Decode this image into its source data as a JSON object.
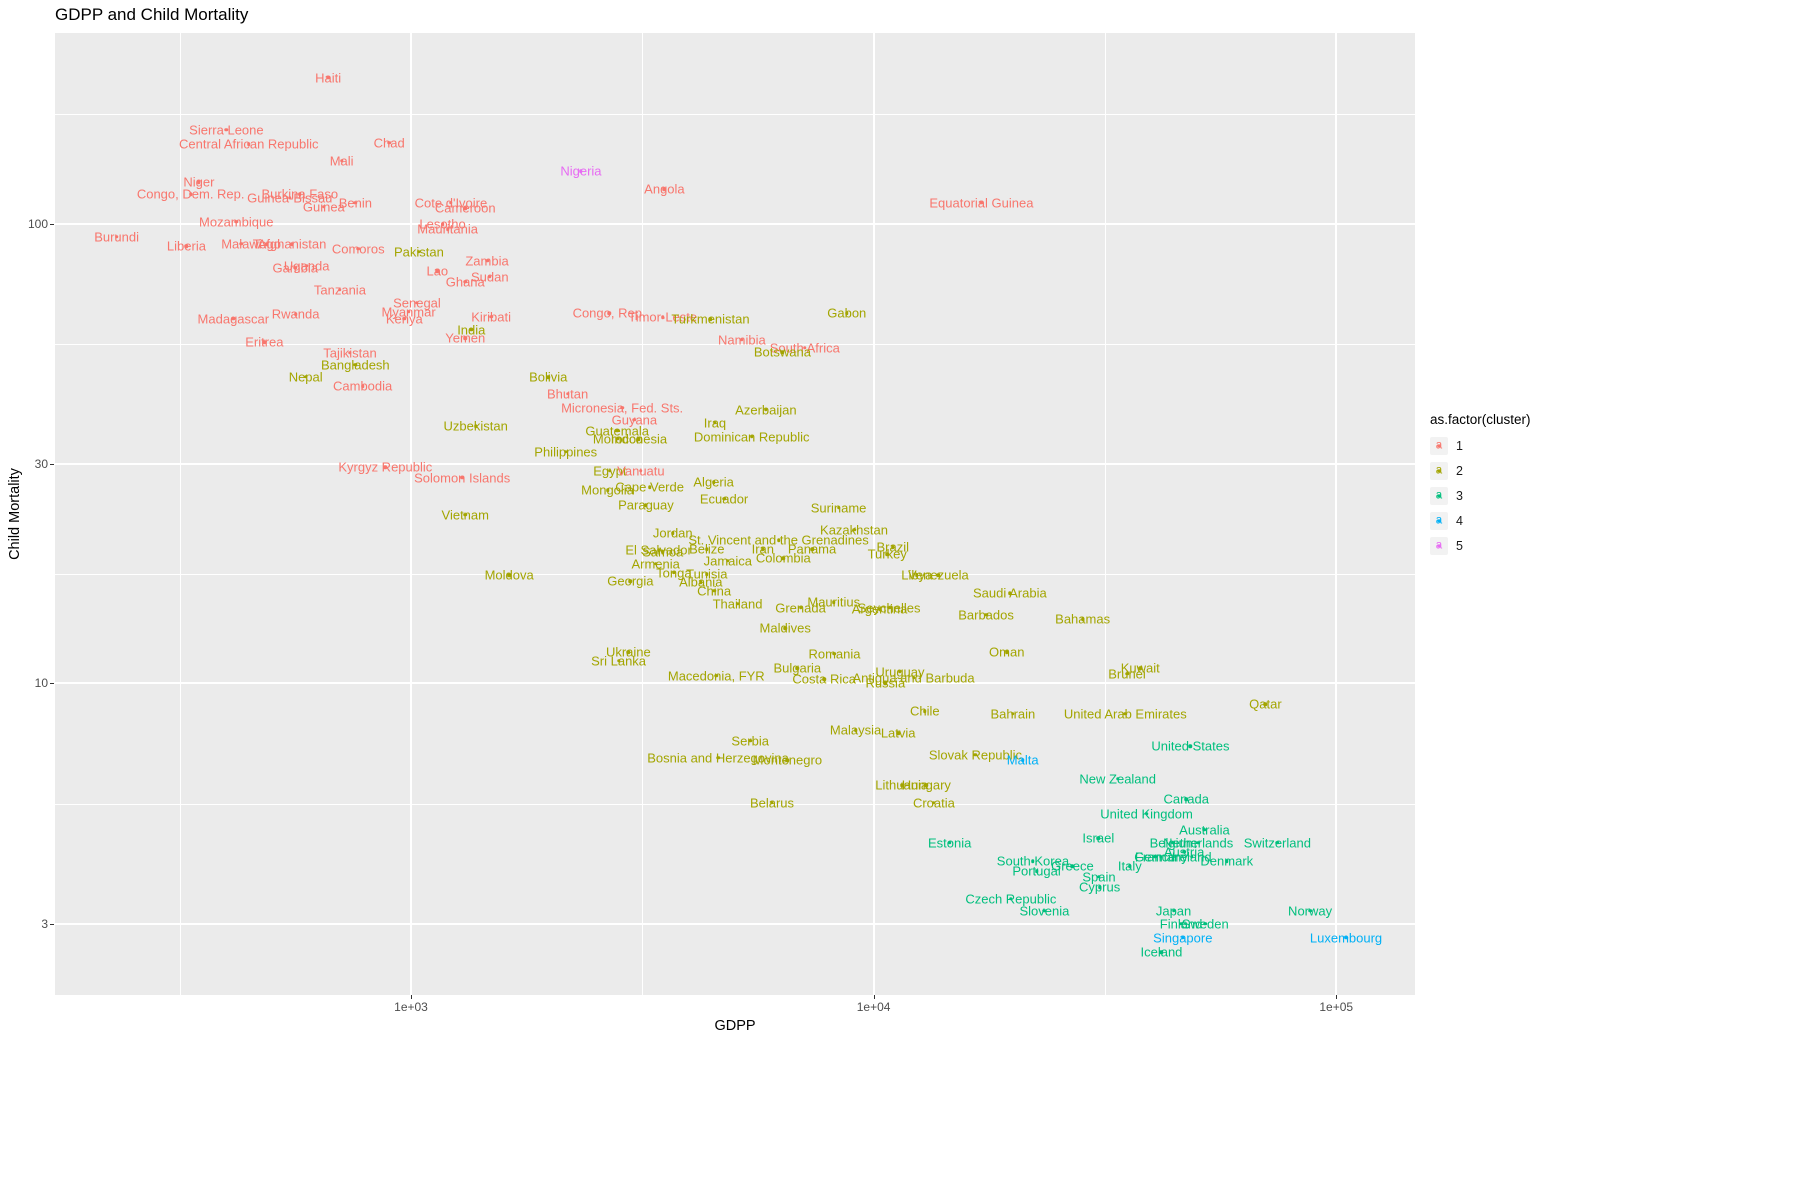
{
  "chart": {
    "title": "GDPP and Child Mortality",
    "panel_bg": "#EBEBEB",
    "grid_color": "#FFFFFF",
    "tick_text_color": "#4D4D4D",
    "x_axis": {
      "label": "GDPP",
      "scale": "log10",
      "domain": [
        170,
        148000
      ],
      "ticks": [
        {
          "label": "1e+03",
          "value": 1000
        },
        {
          "label": "1e+04",
          "value": 10000
        },
        {
          "label": "1e+05",
          "value": 100000
        }
      ],
      "minor": [
        316.2,
        3162,
        31620
      ]
    },
    "y_axis": {
      "label": "Child Mortality",
      "scale": "log10",
      "domain": [
        2.1,
        260
      ],
      "ticks": [
        {
          "label": "100",
          "value": 100
        },
        {
          "label": "30",
          "value": 30
        },
        {
          "label": "10",
          "value": 10
        },
        {
          "label": "3",
          "value": 3
        }
      ],
      "minor": [
        5.48,
        17.32,
        54.77,
        173.2
      ]
    },
    "legend": {
      "title": "as.factor(cluster)",
      "items": [
        {
          "label": "1",
          "color": "#F8766D"
        },
        {
          "label": "2",
          "color": "#A3A500"
        },
        {
          "label": "3",
          "color": "#00BF7D"
        },
        {
          "label": "4",
          "color": "#00B0F6"
        },
        {
          "label": "5",
          "color": "#E76BF3"
        }
      ]
    }
  },
  "chart_data": {
    "type": "scatter",
    "title": "GDPP and Child Mortality",
    "xlabel": "GDPP",
    "ylabel": "Child Mortality",
    "scales": "log-log",
    "clusters": {
      "1": "#F8766D",
      "2": "#A3A500",
      "3": "#00BF7D",
      "4": "#00B0F6",
      "5": "#E76BF3"
    },
    "point_fields": [
      "name",
      "cluster",
      "gdpp",
      "child_mort"
    ],
    "points": [
      [
        "Haiti",
        1,
        662,
        208
      ],
      [
        "Sierra Leone",
        1,
        399,
        160
      ],
      [
        "Central African Republic",
        1,
        446,
        149
      ],
      [
        "Chad",
        1,
        897,
        150
      ],
      [
        "Mali",
        1,
        708,
        137
      ],
      [
        "Nigeria",
        5,
        2330,
        130
      ],
      [
        "Niger",
        1,
        348,
        123
      ],
      [
        "Angola",
        1,
        3530,
        119
      ],
      [
        "Congo, Dem. Rep.",
        1,
        334,
        116
      ],
      [
        "Burkina Faso",
        1,
        575,
        116
      ],
      [
        "Guinea-Bissau",
        1,
        547,
        114
      ],
      [
        "Benin",
        1,
        758,
        111
      ],
      [
        "Cote d'Ivoire",
        1,
        1220,
        111
      ],
      [
        "Equatorial Guinea",
        1,
        17100,
        111
      ],
      [
        "Guinea",
        1,
        648,
        109
      ],
      [
        "Cameroon",
        1,
        1310,
        108
      ],
      [
        "Mozambique",
        1,
        419,
        101
      ],
      [
        "Lesotho",
        1,
        1170,
        99.7
      ],
      [
        "Mauritania",
        1,
        1200,
        97.4
      ],
      [
        "Burundi",
        1,
        231,
        93.6
      ],
      [
        "Malawi",
        1,
        430,
        90.5
      ],
      [
        "Togo",
        1,
        488,
        90.3
      ],
      [
        "Afghanistan",
        1,
        553,
        90.2
      ],
      [
        "Liberia",
        1,
        327,
        89.3
      ],
      [
        "Comoros",
        1,
        769,
        88.2
      ],
      [
        "Pakistan",
        2,
        1040,
        87
      ],
      [
        "Zambia",
        1,
        1460,
        83.1
      ],
      [
        "Uganda",
        1,
        595,
        81
      ],
      [
        "Gambia",
        1,
        562,
        80.3
      ],
      [
        "Lao",
        1,
        1140,
        78.9
      ],
      [
        "Sudan",
        1,
        1480,
        76.7
      ],
      [
        "Ghana",
        1,
        1310,
        74.7
      ],
      [
        "Tanzania",
        1,
        702,
        71.9
      ],
      [
        "Senegal",
        1,
        1030,
        67.3
      ],
      [
        "Myanmar",
        1,
        988,
        64.4
      ],
      [
        "Gabon",
        2,
        8750,
        63.9
      ],
      [
        "Congo, Rep.",
        1,
        2680,
        63.9
      ],
      [
        "Rwanda",
        1,
        563,
        63.6
      ],
      [
        "Kiribati",
        1,
        1490,
        62.7
      ],
      [
        "Timor-Leste",
        1,
        3500,
        62.6
      ],
      [
        "Kenya",
        1,
        967,
        62.2
      ],
      [
        "Madagascar",
        1,
        413,
        62.2
      ],
      [
        "Turkmenistan",
        2,
        4440,
        62
      ],
      [
        "India",
        2,
        1350,
        58.8
      ],
      [
        "Yemen",
        1,
        1310,
        56.3
      ],
      [
        "Namibia",
        1,
        5190,
        56
      ],
      [
        "Eritrea",
        1,
        482,
        55.2
      ],
      [
        "South Africa",
        1,
        7100,
        53.7
      ],
      [
        "Botswana",
        2,
        6350,
        52.5
      ],
      [
        "Tajikistan",
        1,
        738,
        52.4
      ],
      [
        "Bangladesh",
        2,
        758,
        49.4
      ],
      [
        "Nepal",
        2,
        592,
        46.5
      ],
      [
        "Bolivia",
        2,
        1980,
        46.3
      ],
      [
        "Cambodia",
        1,
        786,
        44.3
      ],
      [
        "Bhutan",
        1,
        2180,
        42.7
      ],
      [
        "Micronesia, Fed. Sts.",
        1,
        2860,
        39.8
      ],
      [
        "Azerbaijan",
        2,
        5850,
        39.4
      ],
      [
        "Guyana",
        1,
        3040,
        37.5
      ],
      [
        "Iraq",
        2,
        4540,
        36.9
      ],
      [
        "Uzbekistan",
        2,
        1380,
        36.3
      ],
      [
        "Guatemala",
        2,
        2790,
        35.5
      ],
      [
        "Dominican Republic",
        2,
        5450,
        34.4
      ],
      [
        "Morocco",
        2,
        2800,
        34.1
      ],
      [
        "Indonesia",
        2,
        3110,
        34
      ],
      [
        "Philippines",
        2,
        2160,
        31.9
      ],
      [
        "Kyrgyz Republic",
        1,
        880,
        29.5
      ],
      [
        "Egypt",
        2,
        2690,
        29
      ],
      [
        "Vanuatu",
        1,
        3140,
        29
      ],
      [
        "Solomon Islands",
        1,
        1290,
        28
      ],
      [
        "Algeria",
        2,
        4510,
        27.4
      ],
      [
        "Cape Verde",
        2,
        3280,
        26.7
      ],
      [
        "Mongolia",
        2,
        2660,
        26.3
      ],
      [
        "Ecuador",
        2,
        4750,
        25.2
      ],
      [
        "Paraguay",
        2,
        3220,
        24.4
      ],
      [
        "Suriname",
        2,
        8400,
        24.1
      ],
      [
        "Vietnam",
        2,
        1310,
        23.3
      ],
      [
        "Kazakhstan",
        2,
        9070,
        21.6
      ],
      [
        "Jordan",
        2,
        3680,
        21.2
      ],
      [
        "St. Vincent and the Grenadines",
        2,
        6230,
        20.5
      ],
      [
        "Brazil",
        2,
        11000,
        19.8
      ],
      [
        "Iran",
        2,
        5760,
        19.6
      ],
      [
        "Panama",
        2,
        7360,
        19.6
      ],
      [
        "Belize",
        2,
        4360,
        19.6
      ],
      [
        "El Salvador",
        2,
        3430,
        19.5
      ],
      [
        "Samoa",
        2,
        3500,
        19.3
      ],
      [
        "Turkey",
        2,
        10700,
        19.1
      ],
      [
        "Colombia",
        2,
        6380,
        18.7
      ],
      [
        "Jamaica",
        2,
        4840,
        18.5
      ],
      [
        "Armenia",
        2,
        3380,
        18.2
      ],
      [
        "Tonga",
        2,
        3700,
        17.4
      ],
      [
        "Tunisia",
        2,
        4360,
        17.3
      ],
      [
        "Moldova",
        2,
        1630,
        17.2
      ],
      [
        "Venezuela",
        2,
        13800,
        17.2
      ],
      [
        "Libya",
        2,
        12400,
        17.2
      ],
      [
        "Georgia",
        2,
        2980,
        16.7
      ],
      [
        "Albania",
        2,
        4230,
        16.6
      ],
      [
        "China",
        2,
        4520,
        15.9
      ],
      [
        "Saudi Arabia",
        2,
        19700,
        15.7
      ],
      [
        "Mauritius",
        2,
        8200,
        15
      ],
      [
        "Thailand",
        2,
        5080,
        14.9
      ],
      [
        "Grenada",
        2,
        6950,
        14.6
      ],
      [
        "Seychelles",
        2,
        10800,
        14.6
      ],
      [
        "Argentina",
        2,
        10300,
        14.5
      ],
      [
        "Barbados",
        2,
        17500,
        14.1
      ],
      [
        "Bahamas",
        2,
        28300,
        13.8
      ],
      [
        "Maldives",
        2,
        6440,
        13.2
      ],
      [
        "Oman",
        2,
        19400,
        11.7
      ],
      [
        "Ukraine",
        2,
        2950,
        11.7
      ],
      [
        "Romania",
        2,
        8230,
        11.6
      ],
      [
        "Sri Lanka",
        2,
        2810,
        11.2
      ],
      [
        "Bulgaria",
        2,
        6840,
        10.8
      ],
      [
        "Kuwait",
        2,
        37700,
        10.8
      ],
      [
        "Uruguay",
        2,
        11400,
        10.6
      ],
      [
        "Brunei",
        2,
        35300,
        10.5
      ],
      [
        "Macedonia, FYR",
        2,
        4570,
        10.4
      ],
      [
        "Antigua and Barbuda",
        2,
        12200,
        10.3
      ],
      [
        "Costa Rica",
        2,
        7820,
        10.2
      ],
      [
        "Russia",
        2,
        10600,
        10
      ],
      [
        "Qatar",
        2,
        70300,
        9
      ],
      [
        "Chile",
        2,
        12900,
        8.7
      ],
      [
        "Bahrain",
        2,
        20000,
        8.6
      ],
      [
        "United Arab Emirates",
        2,
        35000,
        8.6
      ],
      [
        "Malaysia",
        2,
        9140,
        7.9
      ],
      [
        "Latvia",
        2,
        11300,
        7.8
      ],
      [
        "Serbia",
        2,
        5410,
        7.5
      ],
      [
        "United States",
        3,
        48400,
        7.3
      ],
      [
        "Slovak Republic",
        2,
        16600,
        7
      ],
      [
        "Bosnia and Herzegovina",
        2,
        4610,
        6.9
      ],
      [
        "Montenegro",
        2,
        6510,
        6.8
      ],
      [
        "Malta",
        4,
        21000,
        6.8
      ],
      [
        "New Zealand",
        3,
        33700,
        6.2
      ],
      [
        "Lithuania",
        2,
        11500,
        6
      ],
      [
        "Hungary",
        2,
        13000,
        6
      ],
      [
        "Canada",
        3,
        47400,
        5.6
      ],
      [
        "Belarus",
        2,
        6030,
        5.5
      ],
      [
        "Croatia",
        2,
        13500,
        5.5
      ],
      [
        "United Kingdom",
        3,
        38900,
        5.2
      ],
      [
        "Australia",
        3,
        51900,
        4.8
      ],
      [
        "Israel",
        3,
        30600,
        4.6
      ],
      [
        "Estonia",
        3,
        14600,
        4.5
      ],
      [
        "Belgium",
        3,
        44400,
        4.5
      ],
      [
        "Netherlands",
        3,
        50300,
        4.5
      ],
      [
        "Switzerland",
        3,
        74600,
        4.5
      ],
      [
        "Austria",
        3,
        46900,
        4.3
      ],
      [
        "France",
        3,
        40600,
        4.2
      ],
      [
        "Germany",
        3,
        41800,
        4.2
      ],
      [
        "Ireland",
        3,
        48700,
        4.2
      ],
      [
        "Denmark",
        3,
        58000,
        4.1
      ],
      [
        "South Korea",
        3,
        22100,
        4.1
      ],
      [
        "Greece",
        3,
        26900,
        4
      ],
      [
        "Italy",
        3,
        35800,
        4
      ],
      [
        "Portugal",
        3,
        22500,
        3.9
      ],
      [
        "Spain",
        3,
        30700,
        3.8
      ],
      [
        "Cyprus",
        3,
        30800,
        3.6
      ],
      [
        "Czech Republic",
        3,
        19800,
        3.4
      ],
      [
        "Slovenia",
        3,
        23400,
        3.2
      ],
      [
        "Japan",
        3,
        44500,
        3.2
      ],
      [
        "Norway",
        3,
        87800,
        3.2
      ],
      [
        "Finland",
        3,
        46200,
        3
      ],
      [
        "Sweden",
        3,
        52100,
        3
      ],
      [
        "Singapore",
        4,
        46600,
        2.8
      ],
      [
        "Luxembourg",
        4,
        105000,
        2.8
      ],
      [
        "Iceland",
        3,
        41900,
        2.6
      ]
    ]
  }
}
